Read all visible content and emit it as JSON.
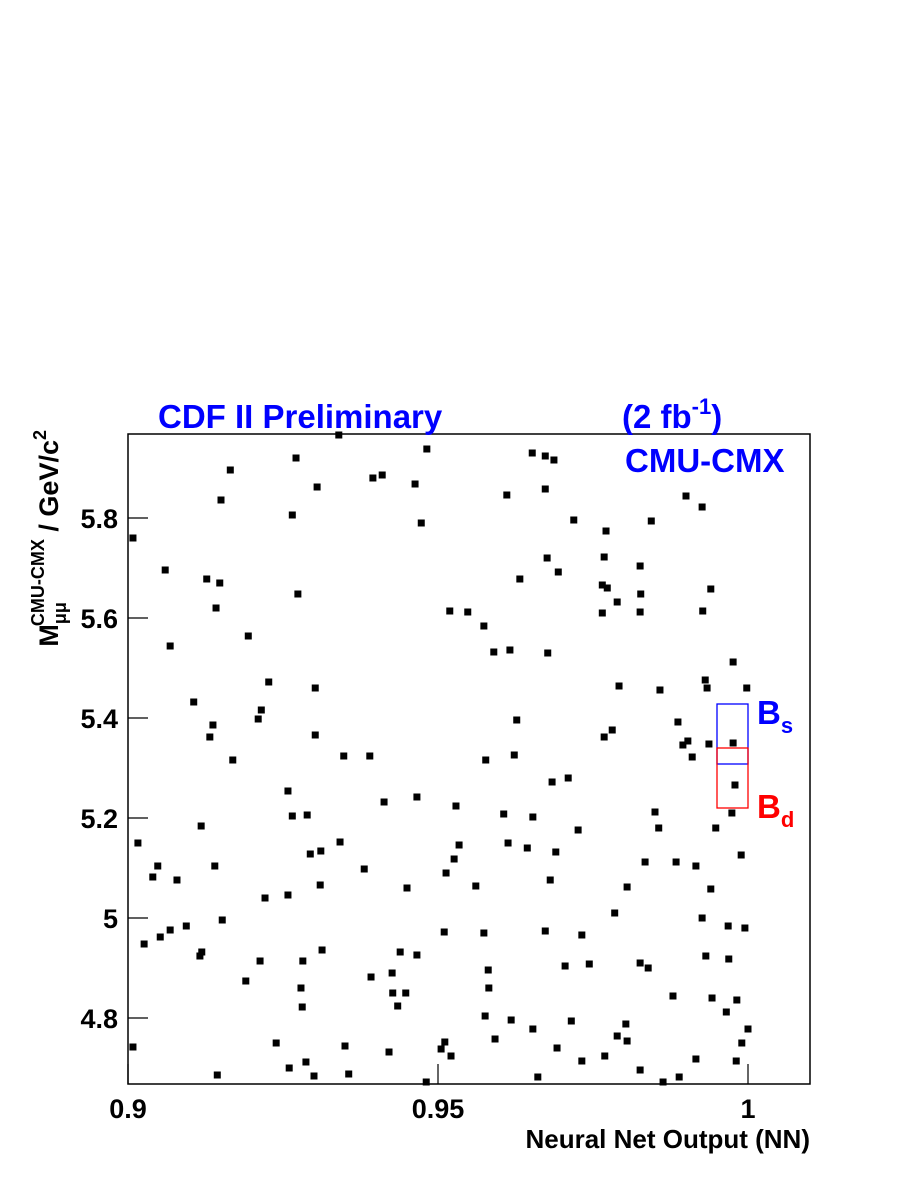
{
  "chart_data": {
    "type": "scatter",
    "title": "CDF II Preliminary",
    "luminosity": {
      "text": "(2 fb",
      "sup": "-1",
      "tail": ")"
    },
    "subtitle": "CMU-CMX",
    "x_label": "Neural Net Output (NN)",
    "y_label": {
      "base": "M",
      "sub": "μμ",
      "sup": "CMU-CMX",
      "rest": " / GeV/c",
      "sup2": "2"
    },
    "xlim": [
      0.9,
      1.01
    ],
    "ylim": [
      4.668,
      5.968
    ],
    "xticks": [
      0.9,
      0.95,
      1
    ],
    "yticks": [
      4.8,
      5,
      5.2,
      5.4,
      5.6,
      5.8
    ],
    "color": "#000000",
    "x": [
      0.9008,
      0.9016,
      0.9008,
      0.9026,
      0.904,
      0.9048,
      0.9052,
      0.906,
      0.9068,
      0.9068,
      0.9079,
      0.9094,
      0.9106,
      0.9116,
      0.9118,
      0.9119,
      0.9127,
      0.9132,
      0.9137,
      0.914,
      0.9142,
      0.9144,
      0.9148,
      0.915,
      0.9152,
      0.9165,
      0.9169,
      0.919,
      0.9194,
      0.921,
      0.9213,
      0.9215,
      0.9221,
      0.9227,
      0.9239,
      0.9258,
      0.9258,
      0.926,
      0.9265,
      0.9265,
      0.9271,
      0.9274,
      0.9279,
      0.9281,
      0.9282,
      0.9287,
      0.9289,
      0.9294,
      0.93,
      0.9302,
      0.9302,
      0.9305,
      0.9311,
      0.931,
      0.9313,
      0.934,
      0.9342,
      0.9348,
      0.935,
      0.9356,
      0.9381,
      0.939,
      0.9392,
      0.9395,
      0.941,
      0.9413,
      0.9421,
      0.9426,
      0.9427,
      0.9435,
      0.9439,
      0.9448,
      0.945,
      0.9463,
      0.9466,
      0.9466,
      0.9473,
      0.9482,
      0.9481,
      0.9505,
      0.951,
      0.9511,
      0.9513,
      0.9519,
      0.9521,
      0.9526,
      0.9529,
      0.9534,
      0.9548,
      0.9561,
      0.9574,
      0.9574,
      0.9576,
      0.9577,
      0.9581,
      0.9582,
      0.959,
      0.9592,
      0.9606,
      0.9611,
      0.9613,
      0.9616,
      0.9618,
      0.9623,
      0.9627,
      0.9632,
      0.9644,
      0.9652,
      0.9653,
      0.9653,
      0.9661,
      0.9673,
      0.9673,
      0.9673,
      0.9676,
      0.9677,
      0.9681,
      0.9684,
      0.9687,
      0.969,
      0.9694,
      0.9692,
      0.9705,
      0.971,
      0.9715,
      0.9719,
      0.9726,
      0.9732,
      0.9732,
      0.9744,
      0.9765,
      0.9765,
      0.9768,
      0.9768,
      0.9769,
      0.9771,
      0.9773,
      0.9781,
      0.9785,
      0.9789,
      0.9789,
      0.9792,
      0.9803,
      0.9805,
      0.9805,
      0.9826,
      0.9826,
      0.9826,
      0.9827,
      0.9826,
      0.9834,
      0.9839,
      0.9844,
      0.985,
      0.9856,
      0.9858,
      0.9863,
      0.9879,
      0.9884,
      0.9887,
      0.9889,
      0.9895,
      0.99,
      0.9903,
      0.991,
      0.9916,
      0.9916,
      0.9926,
      0.9926,
      0.9927,
      0.9931,
      0.9932,
      0.9934,
      0.9937,
      0.994,
      0.994,
      0.9942,
      0.9948,
      0.9965,
      0.9968,
      0.9969,
      0.9976,
      0.9976,
      0.9974,
      0.9979,
      0.9981,
      0.9982,
      0.9989,
      0.999,
      0.9995,
      1.0,
      0.9998
    ],
    "y": [
      5.76,
      5.15,
      4.742,
      4.948,
      5.082,
      5.104,
      4.962,
      5.696,
      5.544,
      4.976,
      5.076,
      4.984,
      5.432,
      4.924,
      5.184,
      4.932,
      5.678,
      5.362,
      5.386,
      5.104,
      5.62,
      4.686,
      5.67,
      5.836,
      4.996,
      5.896,
      5.316,
      4.874,
      5.564,
      5.398,
      4.914,
      5.416,
      5.04,
      5.472,
      4.75,
      5.254,
      5.046,
      4.7,
      5.204,
      5.806,
      5.92,
      5.648,
      4.86,
      4.822,
      4.914,
      4.712,
      5.206,
      5.128,
      4.684,
      5.46,
      5.366,
      5.862,
      5.134,
      5.066,
      4.936,
      5.966,
      5.152,
      5.324,
      4.744,
      4.688,
      5.098,
      5.324,
      4.882,
      5.88,
      5.886,
      5.232,
      4.732,
      4.89,
      4.85,
      4.824,
      4.932,
      4.85,
      5.06,
      5.868,
      5.242,
      4.926,
      5.79,
      5.938,
      4.672,
      4.738,
      4.972,
      4.752,
      5.09,
      5.614,
      4.724,
      5.118,
      5.224,
      5.146,
      5.612,
      5.064,
      4.97,
      5.584,
      4.804,
      5.316,
      4.896,
      4.86,
      5.532,
      4.758,
      5.208,
      5.846,
      5.15,
      5.536,
      4.796,
      5.326,
      5.396,
      5.678,
      5.14,
      5.93,
      4.778,
      5.202,
      4.682,
      5.924,
      5.858,
      4.974,
      5.72,
      5.53,
      5.076,
      5.272,
      5.916,
      5.132,
      5.692,
      4.74,
      4.904,
      5.28,
      4.794,
      5.796,
      5.176,
      4.966,
      4.714,
      4.908,
      5.666,
      5.61,
      5.722,
      5.362,
      4.724,
      5.774,
      5.66,
      5.376,
      5.01,
      4.764,
      5.632,
      5.464,
      4.788,
      4.754,
      5.062,
      5.704,
      5.612,
      4.696,
      5.648,
      4.91,
      5.112,
      4.9,
      5.794,
      5.212,
      5.18,
      5.456,
      4.672,
      4.844,
      5.112,
      5.392,
      4.682,
      5.346,
      5.844,
      5.354,
      5.322,
      5.104,
      4.718,
      5.822,
      5.0,
      5.614,
      5.476,
      4.924,
      5.46,
      5.348,
      5.658,
      5.058,
      4.84,
      5.18,
      4.812,
      4.984,
      4.918,
      5.35,
      5.512,
      5.21,
      5.266,
      4.714,
      4.836,
      5.126,
      4.75,
      4.98,
      4.778,
      5.46
    ],
    "regions": [
      {
        "label": "B",
        "sub": "s",
        "color": "#0000ff",
        "xlim": [
          0.995,
          1.0
        ],
        "ylim": [
          5.308,
          5.428
        ]
      },
      {
        "label": "B",
        "sub": "d",
        "color": "#ff0000",
        "xlim": [
          0.995,
          1.0
        ],
        "ylim": [
          5.22,
          5.34
        ]
      }
    ]
  }
}
